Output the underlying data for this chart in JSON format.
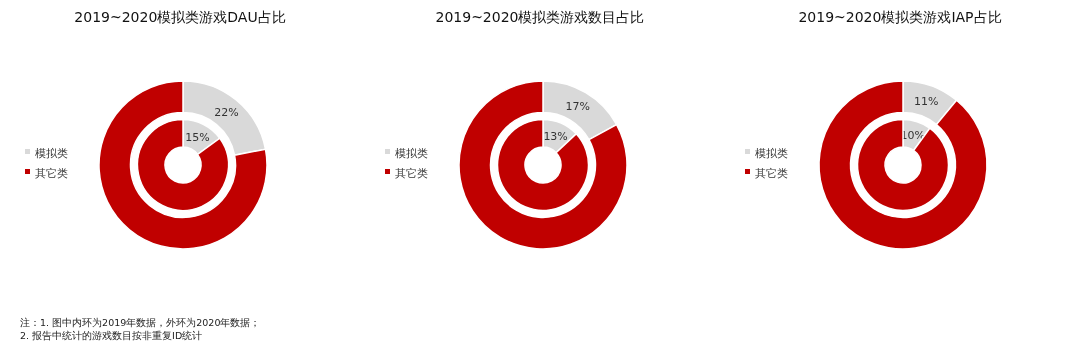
{
  "chart_data": [
    {
      "type": "donut",
      "title": "2019~2020模拟类游戏DAU占比",
      "categories": [
        "模拟类",
        "其它类"
      ],
      "colors": [
        "#d9d9d9",
        "#c00000"
      ],
      "legend": "left",
      "series": [
        {
          "values": [
            15,
            85
          ],
          "value_labels": [
            "15%",
            null
          ]
        },
        {
          "values": [
            22,
            78
          ],
          "value_labels": [
            "22%",
            null
          ]
        }
      ],
      "annotations": [
        "注：1. 图中内环为2019年数据，外环为2020年数据；",
        "2. 报告中统计的游戏数目按非重复ID统计"
      ]
    },
    {
      "type": "donut",
      "title": "2019~2020模拟类游戏数目占比",
      "categories": [
        "模拟类",
        "其它类"
      ],
      "colors": [
        "#d9d9d9",
        "#c00000"
      ],
      "legend": "left",
      "series": [
        {
          "values": [
            13,
            87
          ],
          "value_labels": [
            "13%",
            null
          ]
        },
        {
          "values": [
            17,
            83
          ],
          "value_labels": [
            "17%",
            null
          ]
        }
      ]
    },
    {
      "type": "donut",
      "title": "2019~2020模拟类游戏IAP占比",
      "categories": [
        "模拟类",
        "其它类"
      ],
      "colors": [
        "#d9d9d9",
        "#c00000"
      ],
      "legend": "left",
      "series": [
        {
          "values": [
            10,
            90
          ],
          "value_labels": [
            "10%",
            null
          ]
        },
        {
          "values": [
            11,
            89
          ],
          "value_labels": [
            "11%",
            null
          ]
        }
      ]
    }
  ]
}
